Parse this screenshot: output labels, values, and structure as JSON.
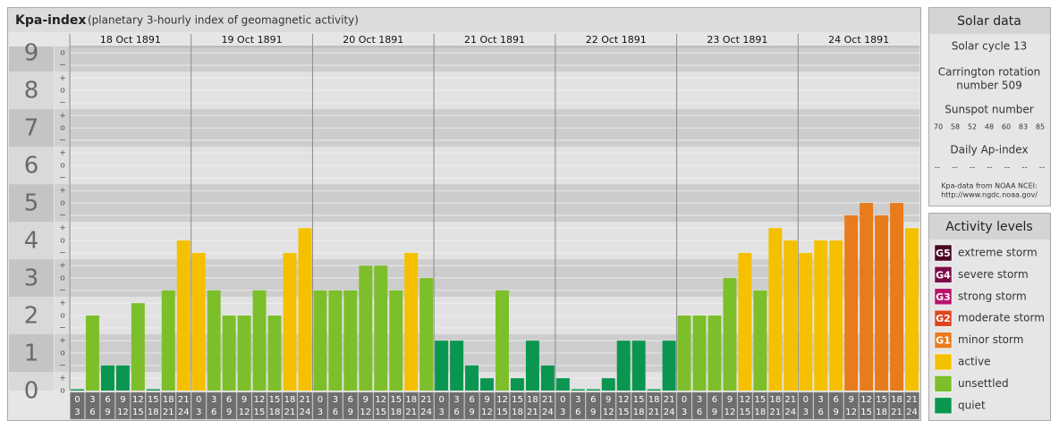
{
  "chart_data": {
    "type": "bar",
    "title": "Kpa-index",
    "subtitle": "(planetary 3-hourly index of geomagnetic activity)",
    "ylim": [
      0,
      9.17
    ],
    "yticks": [
      0,
      1,
      2,
      3,
      4,
      5,
      6,
      7,
      8,
      9
    ],
    "minor_ticks": [
      {
        "value": 9,
        "label": "o"
      },
      {
        "value": 8.67,
        "label": "−"
      },
      {
        "value": 8.33,
        "label": "+"
      },
      {
        "value": 8,
        "label": "o"
      },
      {
        "value": 7.67,
        "label": "−"
      },
      {
        "value": 7.33,
        "label": "+"
      },
      {
        "value": 7,
        "label": "o"
      },
      {
        "value": 6.67,
        "label": "−"
      },
      {
        "value": 6.33,
        "label": "+"
      },
      {
        "value": 6,
        "label": "o"
      },
      {
        "value": 5.67,
        "label": "−"
      },
      {
        "value": 5.33,
        "label": "+"
      },
      {
        "value": 5,
        "label": "o"
      },
      {
        "value": 4.67,
        "label": "−"
      },
      {
        "value": 4.33,
        "label": "+"
      },
      {
        "value": 4,
        "label": "o"
      },
      {
        "value": 3.67,
        "label": "−"
      },
      {
        "value": 3.33,
        "label": "+"
      },
      {
        "value": 3,
        "label": "o"
      },
      {
        "value": 2.67,
        "label": "−"
      },
      {
        "value": 2.33,
        "label": "+"
      },
      {
        "value": 2,
        "label": "o"
      },
      {
        "value": 1.67,
        "label": "−"
      },
      {
        "value": 1.33,
        "label": "+"
      },
      {
        "value": 1,
        "label": "o"
      },
      {
        "value": 0.67,
        "label": "−"
      },
      {
        "value": 0.33,
        "label": "+"
      },
      {
        "value": 0,
        "label": "o"
      }
    ],
    "hour_starts": [
      0,
      3,
      6,
      9,
      12,
      15,
      18,
      21
    ],
    "hour_ends": [
      3,
      6,
      9,
      12,
      15,
      18,
      21,
      24
    ],
    "days": [
      {
        "label": "18 Oct 1891",
        "values": [
          0,
          2,
          0.67,
          0.67,
          2.33,
          0,
          2.67,
          4
        ],
        "colors": [
          "#0a9650",
          "#7cbf2a",
          "#0a9650",
          "#0a9650",
          "#7cbf2a",
          "#0a9650",
          "#7cbf2a",
          "#f5c000"
        ]
      },
      {
        "label": "19 Oct 1891",
        "values": [
          3.67,
          2.67,
          2,
          2,
          2.67,
          2,
          3.67,
          4.33
        ],
        "colors": [
          "#f5c000",
          "#7cbf2a",
          "#7cbf2a",
          "#7cbf2a",
          "#7cbf2a",
          "#7cbf2a",
          "#f5c000",
          "#f5c000"
        ]
      },
      {
        "label": "20 Oct 1891",
        "values": [
          2.67,
          2.67,
          2.67,
          3.33,
          3.33,
          2.67,
          3.67,
          3
        ],
        "colors": [
          "#7cbf2a",
          "#7cbf2a",
          "#7cbf2a",
          "#7cbf2a",
          "#7cbf2a",
          "#7cbf2a",
          "#f5c000",
          "#7cbf2a"
        ]
      },
      {
        "label": "21 Oct 1891",
        "values": [
          1.33,
          1.33,
          0.67,
          0.33,
          2.67,
          0.33,
          1.33,
          0.67
        ],
        "colors": [
          "#0a9650",
          "#0a9650",
          "#0a9650",
          "#0a9650",
          "#7cbf2a",
          "#0a9650",
          "#0a9650",
          "#0a9650"
        ]
      },
      {
        "label": "22 Oct 1891",
        "values": [
          0.33,
          0,
          0,
          0.33,
          1.33,
          1.33,
          0,
          1.33
        ],
        "colors": [
          "#0a9650",
          "#0a9650",
          "#0a9650",
          "#0a9650",
          "#0a9650",
          "#0a9650",
          "#0a9650",
          "#0a9650"
        ]
      },
      {
        "label": "23 Oct 1891",
        "values": [
          2,
          2,
          2,
          3,
          3.67,
          2.67,
          4.33,
          4
        ],
        "colors": [
          "#7cbf2a",
          "#7cbf2a",
          "#7cbf2a",
          "#7cbf2a",
          "#f5c000",
          "#7cbf2a",
          "#f5c000",
          "#f5c000"
        ]
      },
      {
        "label": "24 Oct 1891",
        "values": [
          3.67,
          4,
          4,
          4.67,
          5,
          4.67,
          5,
          4.33
        ],
        "colors": [
          "#f5c000",
          "#f5c000",
          "#f5c000",
          "#e87b1c",
          "#e87b1c",
          "#e87b1c",
          "#e87b1c",
          "#f5c000"
        ]
      }
    ]
  },
  "solar_data": {
    "title": "Solar data",
    "cycle": "Solar cycle 13",
    "rotation_line1": "Carrington rotation",
    "rotation_line2": "number 509",
    "sunspot_title": "Sunspot number",
    "sunspots": [
      70,
      58,
      52,
      48,
      60,
      83,
      85
    ],
    "ap_title": "Daily Ap-index",
    "ap_values": [
      "--",
      "--",
      "--",
      "--",
      "--",
      "--",
      "--"
    ],
    "source_line1": "Kpa-data from NOAA NCEI:",
    "source_line2": "http://www.ngdc.noaa.gov/"
  },
  "activity_levels": {
    "title": "Activity levels",
    "items": [
      {
        "badge": "G5",
        "label": "extreme storm",
        "color": "#4d0526"
      },
      {
        "badge": "G4",
        "label": "severe storm",
        "color": "#7d0a47"
      },
      {
        "badge": "G3",
        "label": "strong storm",
        "color": "#b8146c"
      },
      {
        "badge": "G2",
        "label": "moderate storm",
        "color": "#e0441e"
      },
      {
        "badge": "G1",
        "label": "minor storm",
        "color": "#e87b1c"
      },
      {
        "label": "active",
        "color": "#f5c000"
      },
      {
        "label": "unsettled",
        "color": "#7cbf2a"
      },
      {
        "label": "quiet",
        "color": "#0a9650"
      }
    ]
  }
}
